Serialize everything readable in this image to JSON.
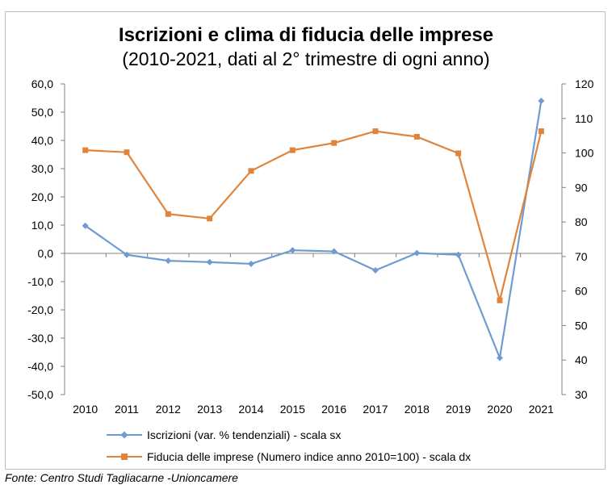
{
  "chart_data": {
    "type": "line",
    "title": "Iscrizioni e clima di fiducia delle imprese",
    "subtitle": "(2010-2021, dati al 2° trimestre di ogni anno)",
    "categories": [
      "2010",
      "2011",
      "2012",
      "2013",
      "2014",
      "2015",
      "2016",
      "2017",
      "2018",
      "2019",
      "2020",
      "2021"
    ],
    "y_left": {
      "min": -50,
      "max": 60,
      "step": 10,
      "ticks": [
        "60,0",
        "50,0",
        "40,0",
        "30,0",
        "20,0",
        "10,0",
        "0,0",
        "-10,0",
        "-20,0",
        "-30,0",
        "-40,0",
        "-50,0"
      ]
    },
    "y_right": {
      "min": 30,
      "max": 120,
      "step": 10,
      "ticks": [
        "120",
        "110",
        "100",
        "90",
        "80",
        "70",
        "60",
        "50",
        "40",
        "30"
      ]
    },
    "series": [
      {
        "name": "Iscrizioni (var. % tendenziali) - scala sx",
        "axis": "left",
        "color": "#6f9bd1",
        "marker": "diamond",
        "values": [
          9.8,
          -0.5,
          -2.6,
          -3.1,
          -3.7,
          1.1,
          0.7,
          -6.0,
          0.1,
          -0.5,
          -37.0,
          54.0
        ]
      },
      {
        "name": "Fiducia delle imprese (Numero indice anno 2010=100) - scala dx",
        "axis": "right",
        "color": "#e0843b",
        "marker": "square",
        "values": [
          100.8,
          100.2,
          82.3,
          81.0,
          94.8,
          100.8,
          102.9,
          106.3,
          104.7,
          99.9,
          57.3,
          106.3
        ]
      }
    ],
    "grid": false,
    "legend_position": "bottom"
  },
  "source": "Fonte: Centro Studi Tagliacarne -Unioncamere"
}
